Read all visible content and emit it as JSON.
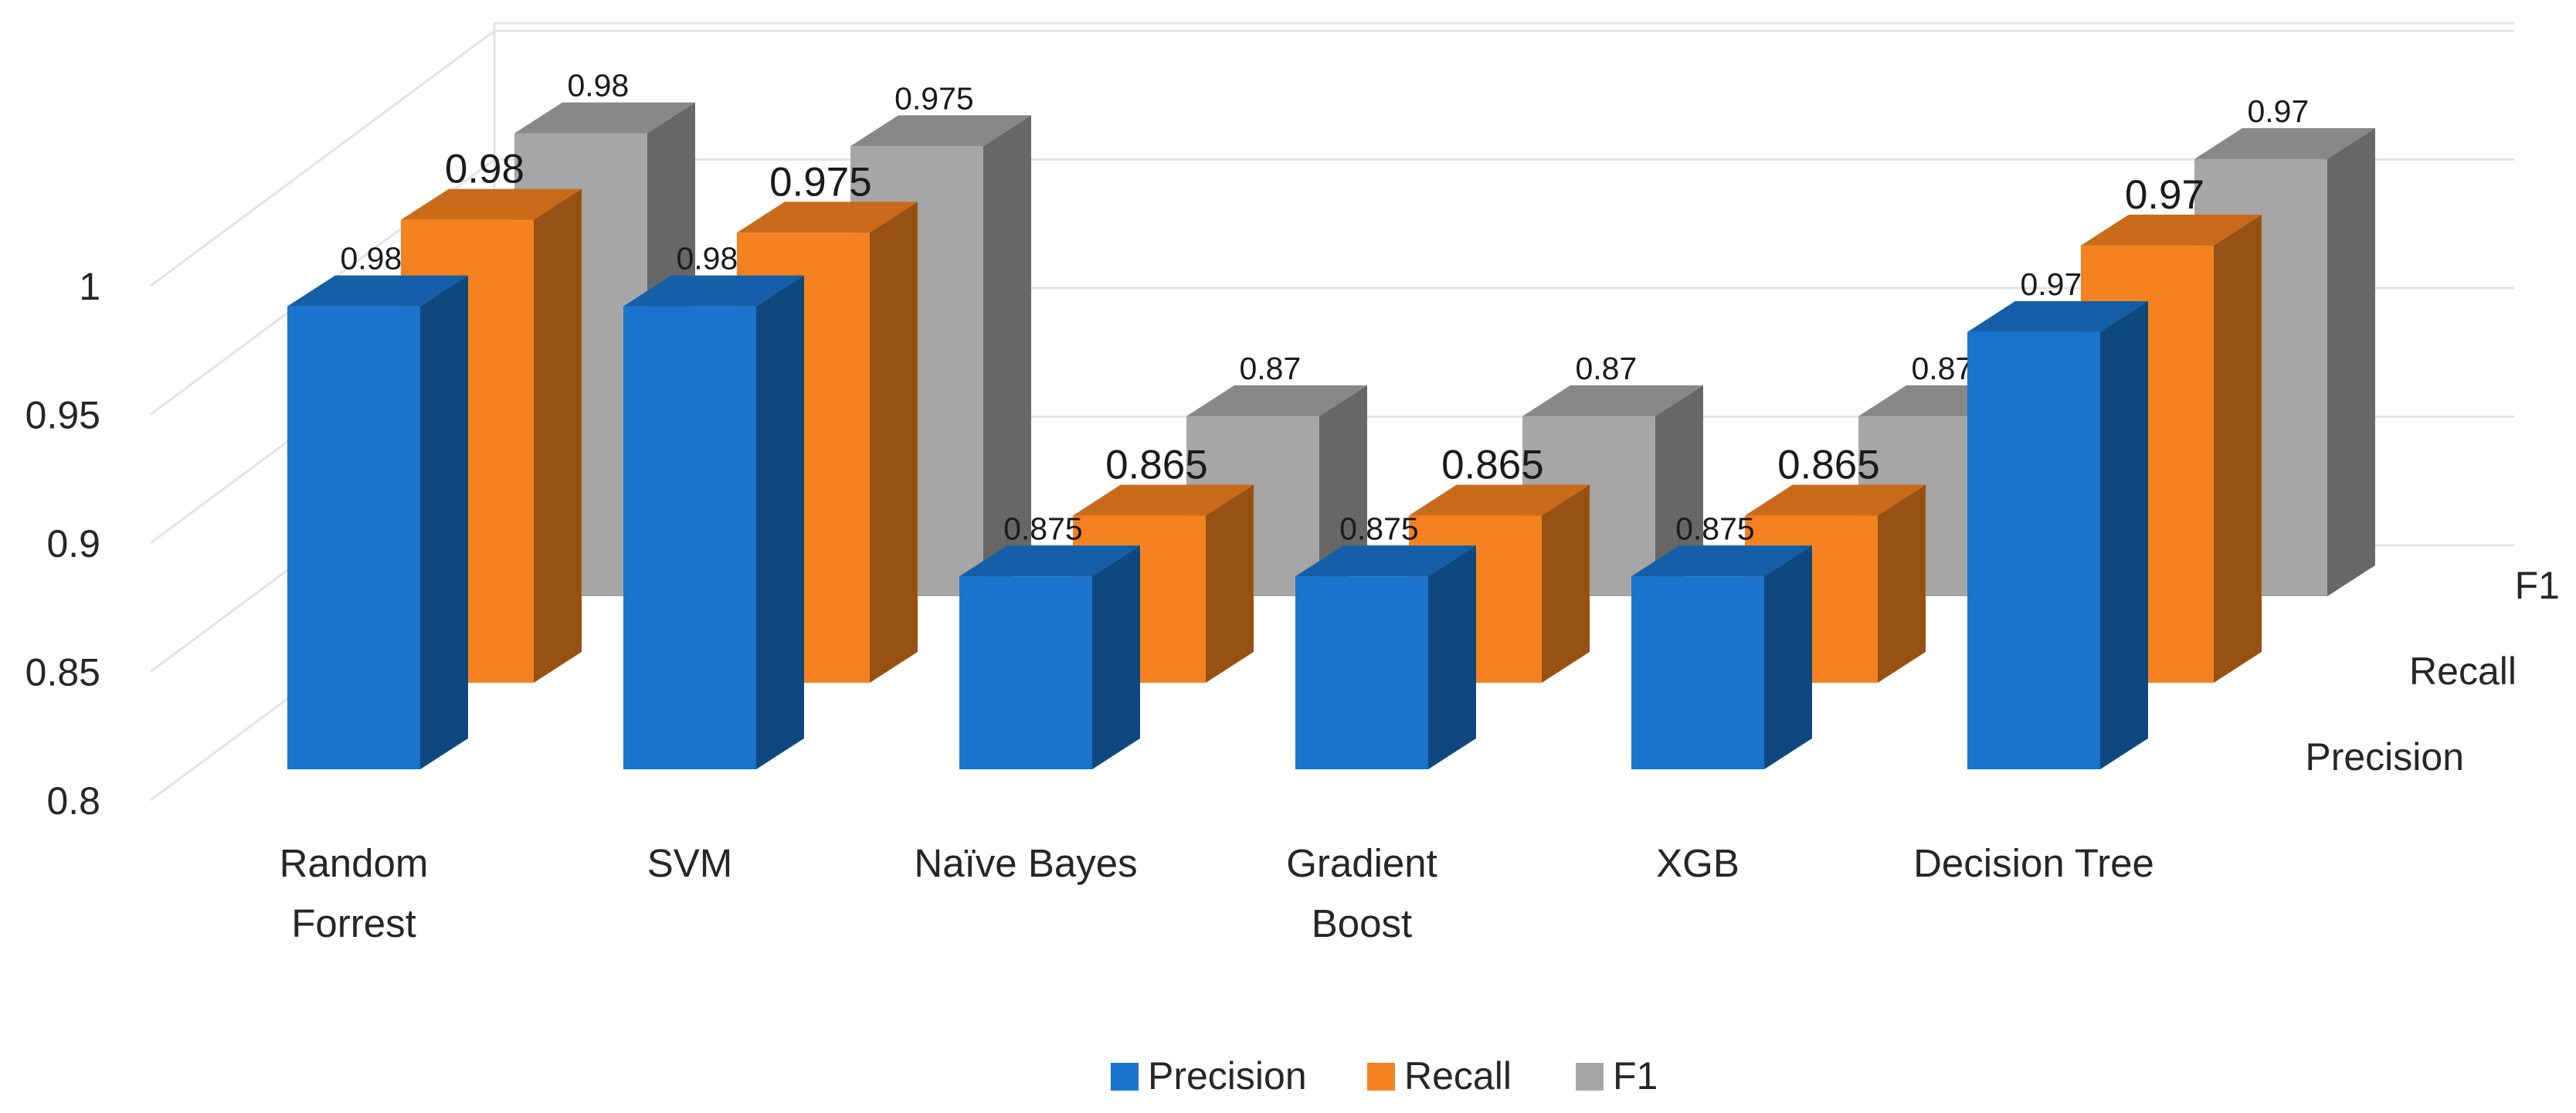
{
  "chart_data": {
    "type": "bar",
    "style": "3d-column-depth",
    "title": "",
    "xlabel": "",
    "ylabel": "",
    "ylim": [
      0.8,
      1.0
    ],
    "y_ticks": [
      "0.8",
      "0.85",
      "0.9",
      "0.95",
      "1"
    ],
    "categories": [
      [
        "Random",
        "Forrest"
      ],
      [
        "SVM"
      ],
      [
        "Naïve Bayes"
      ],
      [
        "Gradient",
        "Boost"
      ],
      [
        "XGB"
      ],
      [
        "Decision Tree"
      ]
    ],
    "series": [
      {
        "name": "Precision",
        "color": "#1874CD",
        "values": [
          0.98,
          0.98,
          0.875,
          0.875,
          0.875,
          0.97
        ],
        "labels": [
          "0.98",
          "0.98",
          "0.875",
          "0.875",
          "0.875",
          "0.97"
        ]
      },
      {
        "name": "Recall",
        "color": "#F58220",
        "values": [
          0.98,
          0.975,
          0.865,
          0.865,
          0.865,
          0.97
        ],
        "labels": [
          "0.98",
          "0.975",
          "0.865",
          "0.865",
          "0.865",
          "0.97"
        ]
      },
      {
        "name": "F1",
        "color": "#A6A6A6",
        "values": [
          0.98,
          0.975,
          0.87,
          0.87,
          0.87,
          0.97
        ],
        "labels": [
          "0.98",
          "0.975",
          "0.87",
          "0.87",
          "0.87",
          "0.97"
        ]
      }
    ],
    "depth_labels": [
      "Precision",
      "Recall",
      "F1"
    ],
    "legend": {
      "position": "bottom",
      "items": [
        "Precision",
        "Recall",
        "F1"
      ]
    },
    "grid": true
  }
}
